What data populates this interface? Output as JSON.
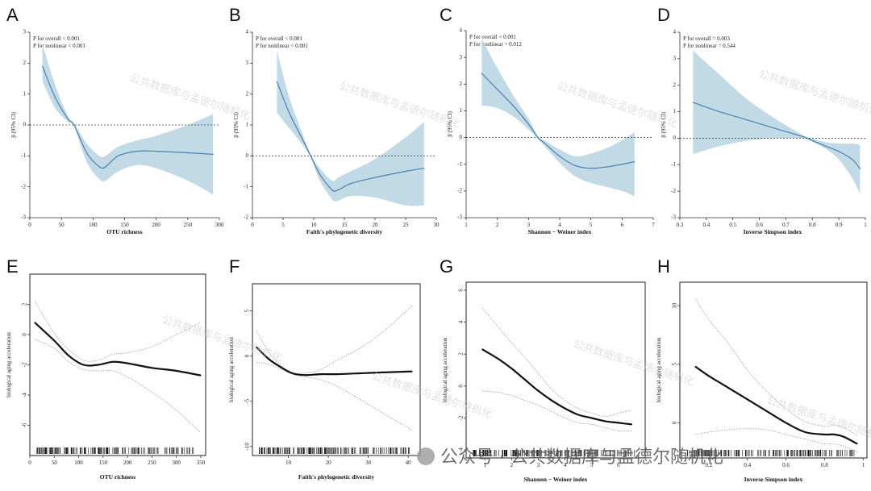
{
  "watermark_text": "公共数据库与孟德尔随机化",
  "footer_watermark": "公众号 · 公共数据库与孟德尔随机化",
  "chart_data": [
    {
      "panel": "A",
      "type": "line",
      "style": "rcs",
      "xlabel": "OTU richness",
      "ylabel": "β (95% CI)",
      "xlim": [
        0,
        300
      ],
      "ylim": [
        -3,
        3
      ],
      "xticks": [
        0,
        50,
        100,
        150,
        200,
        250,
        300
      ],
      "yticks": [
        -3,
        -2,
        -1,
        0,
        1,
        2,
        3
      ],
      "annotations": [
        "P for overall < 0.001",
        "P for nonlinear < 0.001"
      ],
      "reference_y": 0,
      "series": [
        {
          "x": [
            20,
            40,
            60,
            70,
            90,
            110,
            120,
            140,
            170,
            200,
            250,
            290
          ],
          "y": [
            1.9,
            0.9,
            0.2,
            0.0,
            -0.9,
            -1.35,
            -1.35,
            -1.0,
            -0.85,
            -0.85,
            -0.9,
            -0.95
          ],
          "lower": [
            1.4,
            0.55,
            0.1,
            -0.05,
            -1.2,
            -1.75,
            -1.8,
            -1.5,
            -1.3,
            -1.4,
            -1.8,
            -2.25
          ],
          "upper": [
            2.6,
            1.3,
            0.3,
            0.05,
            -0.6,
            -1.0,
            -1.0,
            -0.7,
            -0.5,
            -0.35,
            0.0,
            0.35
          ]
        }
      ]
    },
    {
      "panel": "B",
      "type": "line",
      "style": "rcs",
      "xlabel": "Faith's phylogenetic diversity",
      "ylabel": "β (95% CI)",
      "xlim": [
        0,
        30
      ],
      "ylim": [
        -2,
        4
      ],
      "xticks": [
        0,
        5,
        10,
        15,
        20,
        25,
        30
      ],
      "yticks": [
        -2,
        -1,
        0,
        1,
        2,
        3,
        4
      ],
      "annotations": [
        "P for overall < 0.001",
        "P for nonlinear < 0.001"
      ],
      "reference_y": 0,
      "series": [
        {
          "x": [
            4,
            6,
            8,
            9.5,
            11,
            13,
            14,
            16,
            20,
            25,
            28
          ],
          "y": [
            2.4,
            1.4,
            0.6,
            0.0,
            -0.6,
            -1.1,
            -1.1,
            -0.9,
            -0.7,
            -0.5,
            -0.4
          ],
          "lower": [
            1.4,
            0.9,
            0.4,
            -0.05,
            -0.8,
            -1.4,
            -1.45,
            -1.3,
            -1.35,
            -1.6,
            -1.6
          ],
          "upper": [
            3.4,
            1.9,
            0.8,
            0.05,
            -0.4,
            -0.8,
            -0.7,
            -0.5,
            -0.1,
            0.6,
            1.1
          ]
        }
      ]
    },
    {
      "panel": "C",
      "type": "line",
      "style": "rcs",
      "xlabel": "Shannon − Weiner index",
      "ylabel": "β (95% CI)",
      "xlim": [
        1,
        7
      ],
      "ylim": [
        -3,
        4
      ],
      "xticks": [
        1,
        2,
        3,
        4,
        5,
        6,
        7
      ],
      "yticks": [
        -3,
        -2,
        -1,
        0,
        1,
        2,
        3,
        4
      ],
      "annotations": [
        "P for overall < 0.001",
        "P for nonlinear = 0.012"
      ],
      "reference_y": 0,
      "series": [
        {
          "x": [
            1.5,
            2,
            2.5,
            3,
            3.3,
            3.5,
            4,
            4.5,
            5,
            5.5,
            6,
            6.4
          ],
          "y": [
            2.4,
            1.8,
            1.2,
            0.5,
            0.0,
            -0.2,
            -0.7,
            -1.05,
            -1.15,
            -1.1,
            -1.0,
            -0.9
          ],
          "lower": [
            1.2,
            1.1,
            0.8,
            0.3,
            -0.05,
            -0.3,
            -0.95,
            -1.45,
            -1.7,
            -1.85,
            -2.0,
            -2.2
          ],
          "upper": [
            3.7,
            2.6,
            1.6,
            0.7,
            0.05,
            -0.1,
            -0.45,
            -0.7,
            -0.6,
            -0.4,
            -0.1,
            0.2
          ]
        }
      ]
    },
    {
      "panel": "D",
      "type": "line",
      "style": "rcs",
      "xlabel": "Inverse Simpson index",
      "ylabel": "β (95% CI)",
      "xlim": [
        0.3,
        1.0
      ],
      "ylim": [
        -3,
        4
      ],
      "xticks": [
        0.3,
        0.4,
        0.5,
        0.6,
        0.7,
        0.8,
        0.9,
        1.0
      ],
      "yticks": [
        -3,
        -2,
        -1,
        0,
        1,
        2,
        3,
        4
      ],
      "annotations": [
        "P for overall = 0.003",
        "P for nonlinear = 0.544"
      ],
      "reference_y": 0,
      "series": [
        {
          "x": [
            0.35,
            0.45,
            0.55,
            0.65,
            0.75,
            0.78,
            0.85,
            0.9,
            0.95,
            0.98
          ],
          "y": [
            1.35,
            1.0,
            0.7,
            0.4,
            0.1,
            0.0,
            -0.3,
            -0.5,
            -0.8,
            -1.15
          ],
          "lower": [
            -0.6,
            -0.3,
            -0.1,
            0.0,
            0.0,
            -0.05,
            -0.4,
            -0.8,
            -1.5,
            -2.1
          ],
          "upper": [
            3.3,
            2.4,
            1.5,
            0.8,
            0.2,
            0.05,
            -0.15,
            -0.2,
            -0.2,
            -0.25
          ]
        }
      ]
    },
    {
      "panel": "E",
      "type": "line",
      "style": "gam",
      "xlabel": "OTU richness",
      "ylabel": "biological aging acceleration",
      "xlim": [
        0,
        360
      ],
      "ylim": [
        -8,
        4
      ],
      "xticks": [
        0,
        50,
        100,
        150,
        200,
        250,
        300,
        350
      ],
      "yticks": [
        -6,
        -4,
        -2,
        0,
        2
      ],
      "rug": true,
      "series": [
        {
          "x": [
            10,
            50,
            80,
            110,
            140,
            170,
            200,
            250,
            300,
            350
          ],
          "y": [
            0.8,
            -0.4,
            -1.4,
            -2.0,
            -2.0,
            -1.8,
            -1.9,
            -2.2,
            -2.4,
            -2.7
          ],
          "lower": [
            -0.3,
            -0.9,
            -1.8,
            -2.3,
            -2.4,
            -2.4,
            -2.8,
            -3.8,
            -5.0,
            -6.5
          ],
          "upper": [
            2.2,
            0.1,
            -1.0,
            -1.7,
            -1.7,
            -1.3,
            -1.2,
            -0.8,
            0.0,
            0.8
          ]
        }
      ]
    },
    {
      "panel": "F",
      "type": "line",
      "style": "gam",
      "xlabel": "Faith's phylogenetic diversity",
      "ylabel": "biological aging acceleration",
      "xlim": [
        1,
        43
      ],
      "ylim": [
        -11,
        8
      ],
      "xticks": [
        10,
        20,
        30,
        40
      ],
      "yticks": [
        -10,
        -5,
        0,
        5
      ],
      "rug": true,
      "series": [
        {
          "x": [
            2,
            5,
            8,
            11,
            14,
            18,
            22,
            28,
            34,
            41
          ],
          "y": [
            1.0,
            -0.3,
            -1.2,
            -1.9,
            -2.1,
            -2.0,
            -2.0,
            -1.9,
            -1.8,
            -1.7
          ],
          "lower": [
            -0.7,
            -0.9,
            -1.4,
            -2.0,
            -2.3,
            -2.6,
            -3.3,
            -4.8,
            -6.4,
            -8.2
          ],
          "upper": [
            2.8,
            0.5,
            -1.0,
            -1.8,
            -1.9,
            -1.5,
            -0.5,
            0.9,
            2.8,
            5.6
          ]
        }
      ]
    },
    {
      "panel": "G",
      "type": "line",
      "style": "gam",
      "xlabel": "Shannon − Weiner index",
      "ylabel": "biological aging acceleration",
      "xlim": [
        0.3,
        7.0
      ],
      "ylim": [
        -4.5,
        6.5
      ],
      "xticks": [
        1,
        2,
        3,
        4,
        5,
        6
      ],
      "yticks": [
        -4,
        -2,
        0,
        2,
        4,
        6
      ],
      "rug": true,
      "series": [
        {
          "x": [
            0.9,
            1.5,
            2,
            2.5,
            3,
            3.5,
            4,
            4.5,
            5,
            5.5,
            6,
            6.5
          ],
          "y": [
            2.3,
            1.7,
            1.1,
            0.4,
            -0.3,
            -0.9,
            -1.4,
            -1.8,
            -2.0,
            -2.2,
            -2.3,
            -2.4
          ],
          "lower": [
            -0.3,
            -0.4,
            -0.6,
            -0.9,
            -1.2,
            -1.6,
            -2.0,
            -2.3,
            -2.4,
            -2.6,
            -2.8,
            -2.8
          ],
          "upper": [
            4.9,
            3.7,
            2.7,
            1.8,
            0.8,
            -0.2,
            -0.9,
            -1.4,
            -1.7,
            -1.9,
            -1.7,
            -1.5
          ]
        }
      ]
    },
    {
      "panel": "H",
      "type": "line",
      "style": "gam",
      "xlabel": "Inverse Simpson index",
      "ylabel": "biological aging acceleration",
      "xlim": [
        0.05,
        1.02
      ],
      "ylim": [
        -3,
        12
      ],
      "xticks": [
        0.2,
        0.4,
        0.6,
        0.8,
        1.0
      ],
      "yticks": [
        0,
        5,
        10
      ],
      "rug": true,
      "series": [
        {
          "x": [
            0.13,
            0.2,
            0.3,
            0.4,
            0.5,
            0.6,
            0.7,
            0.8,
            0.85,
            0.9,
            0.97
          ],
          "y": [
            4.8,
            4.0,
            3.0,
            2.0,
            1.0,
            0.0,
            -0.8,
            -1.0,
            -1.0,
            -1.2,
            -1.8
          ],
          "lower": [
            -1.0,
            -0.8,
            -0.6,
            -0.5,
            -0.6,
            -1.0,
            -1.4,
            -1.8,
            -1.8,
            -2.0,
            -2.5
          ],
          "upper": [
            10.6,
            8.8,
            6.8,
            4.5,
            2.7,
            1.2,
            0.1,
            -0.3,
            -0.2,
            -0.4,
            -1.1
          ]
        }
      ]
    }
  ]
}
